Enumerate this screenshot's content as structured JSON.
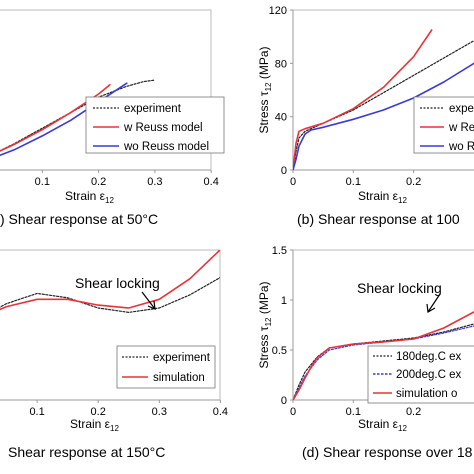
{
  "panel_a": {
    "caption": ") Shear response at 50°C",
    "xlabel": "Strain ε",
    "xlabel_sub": "12"
  },
  "panel_b": {
    "caption": "(b) Shear response at 100",
    "xlabel": "Strain ε",
    "xlabel_sub": "12",
    "ylabel": "Stress  τ",
    "ylabel_sub": "12",
    "ylabel_unit": " (MPa)"
  },
  "panel_c": {
    "caption": "Shear response at 150°C",
    "xlabel": "Strain ε",
    "xlabel_sub": "12",
    "annotation": "Shear locking"
  },
  "panel_d": {
    "caption": "(d) Shear response over 18",
    "xlabel": "Strain ε",
    "xlabel_sub": "12",
    "ylabel": "Stress  τ",
    "ylabel_sub": "12",
    "ylabel_unit": " (MPa)",
    "annotation": "Shear locking"
  },
  "colors": {
    "red": "#e8333a",
    "blue": "#3a3ad6",
    "black": "#222222",
    "frame": "#bbbbbb"
  },
  "chart_data": [
    {
      "id": "a",
      "type": "line",
      "xlim": [
        0,
        0.4
      ],
      "xticks": [
        0.1,
        0.2,
        0.3,
        0.4
      ],
      "series": [
        {
          "name": "experiment",
          "style": "dotted",
          "color": "#222222",
          "x": [
            0,
            0.05,
            0.1,
            0.15,
            0.2,
            0.25,
            0.28,
            0.3
          ],
          "y": [
            8,
            17,
            27,
            37,
            47,
            54,
            57,
            58
          ]
        },
        {
          "name": "w Reuss model",
          "style": "solid",
          "color": "#e8333a",
          "x": [
            0,
            0.05,
            0.1,
            0.15,
            0.2,
            0.22
          ],
          "y": [
            8,
            16.5,
            26,
            37,
            49,
            55
          ]
        },
        {
          "name": "wo Reuss model",
          "style": "solid",
          "color": "#3a3ad6",
          "x": [
            0,
            0.05,
            0.1,
            0.15,
            0.2,
            0.25
          ],
          "y": [
            6,
            13,
            22,
            32,
            44,
            56
          ]
        }
      ]
    },
    {
      "id": "b",
      "type": "line",
      "xlim": [
        0,
        0.3
      ],
      "ylim": [
        0,
        120
      ],
      "xticks": [
        0,
        0.1,
        0.2
      ],
      "yticks": [
        0,
        40,
        80,
        120
      ],
      "series": [
        {
          "name": "expe",
          "style": "dotted",
          "color": "#222222",
          "x": [
            0,
            0.005,
            0.01,
            0.02,
            0.05,
            0.1,
            0.15,
            0.2,
            0.25,
            0.3
          ],
          "y": [
            0,
            14,
            24,
            29,
            35,
            45,
            58,
            71,
            84,
            97
          ]
        },
        {
          "name": "w Reu",
          "style": "solid",
          "color": "#e8333a",
          "x": [
            0,
            0.005,
            0.01,
            0.02,
            0.05,
            0.1,
            0.15,
            0.2,
            0.23
          ],
          "y": [
            0,
            20,
            29,
            31,
            35,
            46,
            62,
            85,
            105
          ]
        },
        {
          "name": "wo R",
          "style": "solid",
          "color": "#3a3ad6",
          "x": [
            0,
            0.005,
            0.01,
            0.02,
            0.03,
            0.05,
            0.1,
            0.15,
            0.2,
            0.25,
            0.3
          ],
          "y": [
            0,
            8,
            18,
            27,
            30,
            32,
            38,
            45,
            54,
            66,
            80
          ]
        }
      ]
    },
    {
      "id": "c",
      "type": "line",
      "xlim": [
        0,
        0.4
      ],
      "xticks": [
        0.1,
        0.2,
        0.3,
        0.4
      ],
      "series": [
        {
          "name": "experiment",
          "style": "dotted",
          "color": "#222222",
          "x": [
            0,
            0.05,
            0.1,
            0.15,
            0.2,
            0.25,
            0.3,
            0.35,
            0.4
          ],
          "y": [
            0.55,
            0.66,
            0.73,
            0.7,
            0.63,
            0.6,
            0.63,
            0.72,
            0.84
          ]
        },
        {
          "name": "simulation",
          "style": "solid",
          "color": "#e8333a",
          "x": [
            0,
            0.05,
            0.1,
            0.15,
            0.2,
            0.25,
            0.3,
            0.35,
            0.4
          ],
          "y": [
            0.55,
            0.64,
            0.69,
            0.69,
            0.65,
            0.63,
            0.69,
            0.83,
            1.03
          ]
        }
      ]
    },
    {
      "id": "d",
      "type": "line",
      "xlim": [
        0,
        0.3
      ],
      "ylim": [
        0,
        1.5
      ],
      "xticks": [
        0,
        0.1,
        0.2
      ],
      "yticks": [
        0,
        0.5,
        1,
        1.5
      ],
      "series": [
        {
          "name": "180deg.C ex",
          "style": "dotted",
          "color": "#222222",
          "x": [
            0,
            0.01,
            0.02,
            0.04,
            0.06,
            0.1,
            0.15,
            0.2,
            0.25,
            0.3
          ],
          "y": [
            0,
            0.15,
            0.28,
            0.43,
            0.52,
            0.56,
            0.59,
            0.62,
            0.68,
            0.76
          ]
        },
        {
          "name": "200deg.C ex",
          "style": "dotted",
          "color": "#3a3ad6",
          "x": [
            0,
            0.01,
            0.02,
            0.04,
            0.06,
            0.1,
            0.15,
            0.2,
            0.25,
            0.3
          ],
          "y": [
            0,
            0.12,
            0.24,
            0.4,
            0.5,
            0.55,
            0.58,
            0.61,
            0.67,
            0.74
          ]
        },
        {
          "name": "simulation o",
          "style": "solid",
          "color": "#e8333a",
          "x": [
            0,
            0.01,
            0.02,
            0.03,
            0.04,
            0.06,
            0.1,
            0.15,
            0.2,
            0.25,
            0.3
          ],
          "y": [
            0,
            0.1,
            0.22,
            0.33,
            0.42,
            0.52,
            0.56,
            0.58,
            0.61,
            0.72,
            0.88
          ]
        }
      ]
    }
  ]
}
